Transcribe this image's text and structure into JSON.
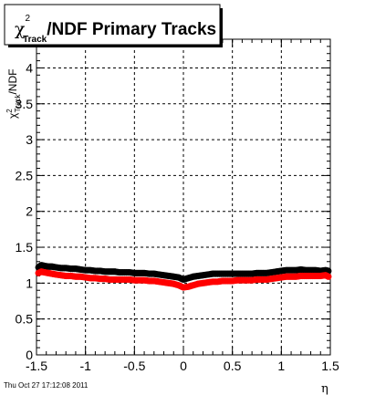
{
  "chart_data": {
    "type": "scatter",
    "title": "χ²Track/NDF  Primary Tracks",
    "xlabel": "η",
    "ylabel": "χ²Track/NDF",
    "xlim": [
      -1.5,
      1.5
    ],
    "ylim": [
      0,
      4.4
    ],
    "x_ticks": [
      "-1.5",
      "-1",
      "-0.5",
      "0",
      "0.5",
      "1",
      "1.5"
    ],
    "y_ticks": [
      "0",
      "0.5",
      "1",
      "1.5",
      "2",
      "2.5",
      "3",
      "3.5",
      "4"
    ],
    "grid": true,
    "x_ticks_values": [
      -1.5,
      -1,
      -0.5,
      0,
      0.5,
      1,
      1.5
    ],
    "y_ticks_values": [
      0,
      0.5,
      1,
      1.5,
      2,
      2.5,
      3,
      3.5,
      4
    ],
    "series": [
      {
        "color": "#000000",
        "x": [
          -1.48,
          -1.45,
          -1.42,
          -1.38,
          -1.34,
          -1.3,
          -1.25,
          -1.2,
          -1.15,
          -1.1,
          -1.05,
          -1.0,
          -0.95,
          -0.9,
          -0.85,
          -0.8,
          -0.75,
          -0.7,
          -0.65,
          -0.6,
          -0.55,
          -0.5,
          -0.45,
          -0.4,
          -0.35,
          -0.3,
          -0.25,
          -0.2,
          -0.15,
          -0.1,
          -0.05,
          0.0,
          0.05,
          0.1,
          0.15,
          0.2,
          0.25,
          0.3,
          0.35,
          0.4,
          0.45,
          0.5,
          0.55,
          0.6,
          0.65,
          0.7,
          0.75,
          0.8,
          0.85,
          0.9,
          0.95,
          1.0,
          1.05,
          1.1,
          1.15,
          1.2,
          1.25,
          1.3,
          1.35,
          1.4,
          1.45,
          1.48
        ],
        "y": [
          1.22,
          1.25,
          1.24,
          1.23,
          1.23,
          1.22,
          1.21,
          1.21,
          1.2,
          1.2,
          1.19,
          1.18,
          1.18,
          1.17,
          1.17,
          1.16,
          1.16,
          1.16,
          1.15,
          1.15,
          1.15,
          1.14,
          1.14,
          1.14,
          1.13,
          1.13,
          1.12,
          1.11,
          1.1,
          1.09,
          1.08,
          1.05,
          1.07,
          1.09,
          1.1,
          1.11,
          1.12,
          1.13,
          1.13,
          1.13,
          1.13,
          1.13,
          1.13,
          1.13,
          1.13,
          1.13,
          1.14,
          1.14,
          1.14,
          1.15,
          1.16,
          1.17,
          1.18,
          1.18,
          1.18,
          1.19,
          1.18,
          1.18,
          1.18,
          1.17,
          1.18,
          1.17
        ]
      },
      {
        "color": "#ff0000",
        "x": [
          -1.48,
          -1.45,
          -1.42,
          -1.38,
          -1.34,
          -1.3,
          -1.25,
          -1.2,
          -1.15,
          -1.1,
          -1.05,
          -1.0,
          -0.95,
          -0.9,
          -0.85,
          -0.8,
          -0.75,
          -0.7,
          -0.65,
          -0.6,
          -0.55,
          -0.5,
          -0.45,
          -0.4,
          -0.35,
          -0.3,
          -0.25,
          -0.2,
          -0.15,
          -0.1,
          -0.05,
          0.0,
          0.05,
          0.1,
          0.15,
          0.2,
          0.25,
          0.3,
          0.35,
          0.4,
          0.45,
          0.5,
          0.55,
          0.6,
          0.65,
          0.7,
          0.75,
          0.8,
          0.85,
          0.9,
          0.95,
          1.0,
          1.05,
          1.1,
          1.15,
          1.2,
          1.25,
          1.3,
          1.35,
          1.4,
          1.45,
          1.48
        ],
        "y": [
          1.14,
          1.16,
          1.15,
          1.14,
          1.13,
          1.12,
          1.11,
          1.1,
          1.1,
          1.09,
          1.09,
          1.08,
          1.07,
          1.07,
          1.06,
          1.06,
          1.05,
          1.05,
          1.05,
          1.05,
          1.05,
          1.04,
          1.04,
          1.04,
          1.03,
          1.03,
          1.02,
          1.01,
          1.0,
          0.99,
          0.97,
          0.94,
          0.95,
          0.97,
          0.99,
          1.0,
          1.01,
          1.02,
          1.02,
          1.03,
          1.03,
          1.03,
          1.04,
          1.04,
          1.04,
          1.04,
          1.05,
          1.05,
          1.05,
          1.06,
          1.07,
          1.08,
          1.09,
          1.09,
          1.09,
          1.1,
          1.1,
          1.1,
          1.1,
          1.1,
          1.11,
          1.09
        ]
      }
    ]
  },
  "page": {
    "title_chi": "χ",
    "title_sup": "2",
    "title_sub": "Track",
    "title_rest": "/NDF  Primary Tracks",
    "ylabel_chi": "χ",
    "ylabel_sup": "2",
    "ylabel_sub": "Track",
    "ylabel_rest": "/NDF",
    "xlabel": "η",
    "footer": "Thu Oct 27 17:12:08 2011"
  }
}
